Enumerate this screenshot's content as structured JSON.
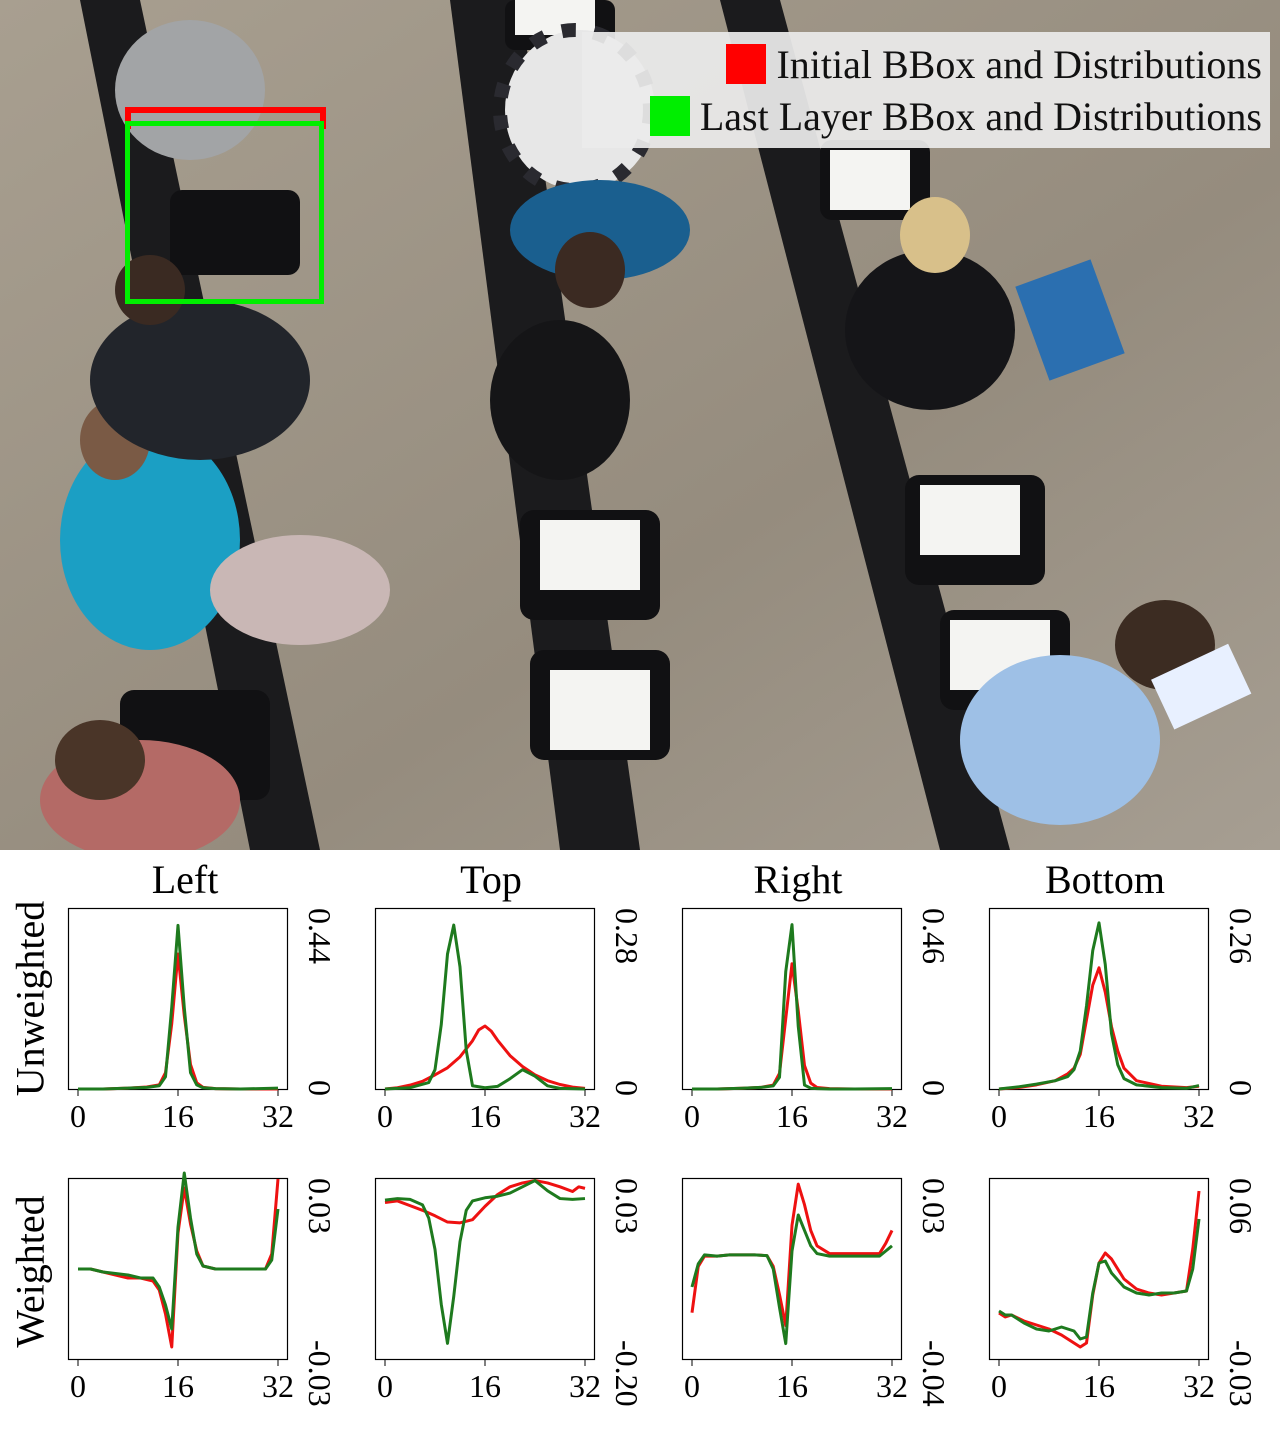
{
  "legend": {
    "items": [
      {
        "label": "Initial BBox and Distributions",
        "color": "#ff0000"
      },
      {
        "label": "Last Layer BBox and Distributions",
        "color": "#00ee00"
      }
    ]
  },
  "boxes": {
    "initial_color": "#ff0000",
    "last_color": "#00ee00"
  },
  "chart_data": [
    {
      "type": "line",
      "panel": "unweighted-left",
      "title": "Left",
      "ylabel": "Unweighted",
      "xlim": [
        0,
        32
      ],
      "xticks": [
        "0",
        "16",
        "32"
      ],
      "ylim": [
        0,
        0.44
      ],
      "yticks": [
        "0",
        "0.44"
      ],
      "series": [
        {
          "color": "#ee1111",
          "x": [
            0,
            4,
            8,
            11,
            13,
            14,
            15,
            16,
            17,
            18,
            19,
            20,
            22,
            26,
            32
          ],
          "y": [
            0,
            0,
            0.002,
            0.005,
            0.01,
            0.04,
            0.16,
            0.33,
            0.18,
            0.06,
            0.015,
            0.004,
            0.001,
            0,
            0
          ]
        },
        {
          "color": "#1e7a1e",
          "x": [
            0,
            4,
            8,
            11,
            13,
            14,
            15,
            16,
            17,
            18,
            19,
            20,
            22,
            26,
            32
          ],
          "y": [
            0,
            0,
            0.002,
            0.004,
            0.008,
            0.03,
            0.2,
            0.4,
            0.2,
            0.04,
            0.01,
            0.003,
            0.001,
            0,
            0.002
          ]
        }
      ]
    },
    {
      "type": "line",
      "panel": "unweighted-top",
      "title": "Top",
      "xlim": [
        0,
        32
      ],
      "xticks": [
        "0",
        "16",
        "32"
      ],
      "ylim": [
        0,
        0.28
      ],
      "yticks": [
        "0",
        "0.28"
      ],
      "series": [
        {
          "color": "#ee1111",
          "x": [
            0,
            2,
            4,
            6,
            8,
            10,
            12,
            14,
            15,
            16,
            17,
            18,
            20,
            22,
            24,
            26,
            28,
            30,
            32
          ],
          "y": [
            0,
            0.002,
            0.006,
            0.012,
            0.022,
            0.033,
            0.05,
            0.075,
            0.092,
            0.098,
            0.09,
            0.076,
            0.052,
            0.035,
            0.022,
            0.013,
            0.007,
            0.003,
            0.001
          ]
        },
        {
          "color": "#1e7a1e",
          "x": [
            0,
            4,
            7,
            8,
            9,
            10,
            11,
            12,
            13,
            14,
            16,
            18,
            20,
            22,
            24,
            26,
            28,
            32
          ],
          "y": [
            0,
            0.002,
            0.01,
            0.03,
            0.1,
            0.21,
            0.255,
            0.19,
            0.06,
            0.005,
            0.002,
            0.004,
            0.016,
            0.03,
            0.02,
            0.005,
            0.001,
            0
          ]
        }
      ]
    },
    {
      "type": "line",
      "panel": "unweighted-right",
      "title": "Right",
      "xlim": [
        0,
        32
      ],
      "xticks": [
        "0",
        "16",
        "32"
      ],
      "ylim": [
        0,
        0.46
      ],
      "yticks": [
        "0",
        "0.46"
      ],
      "series": [
        {
          "color": "#ee1111",
          "x": [
            0,
            4,
            8,
            11,
            13,
            14,
            15,
            16,
            17,
            18,
            19,
            20,
            22,
            26,
            32
          ],
          "y": [
            0,
            0,
            0.002,
            0.004,
            0.01,
            0.04,
            0.18,
            0.32,
            0.2,
            0.06,
            0.015,
            0.004,
            0.001,
            0,
            0
          ]
        },
        {
          "color": "#1e7a1e",
          "x": [
            0,
            4,
            8,
            11,
            13,
            14,
            15,
            16,
            17,
            18,
            19,
            20,
            22,
            26,
            32
          ],
          "y": [
            0,
            0,
            0.002,
            0.004,
            0.008,
            0.03,
            0.3,
            0.42,
            0.16,
            0.01,
            0.002,
            0.001,
            0,
            0,
            0.001
          ]
        }
      ]
    },
    {
      "type": "line",
      "panel": "unweighted-bottom",
      "title": "Bottom",
      "xlim": [
        0,
        32
      ],
      "xticks": [
        "0",
        "16",
        "32"
      ],
      "ylim": [
        0,
        0.26
      ],
      "yticks": [
        "0",
        "0.26"
      ],
      "series": [
        {
          "color": "#ee1111",
          "x": [
            0,
            3,
            6,
            9,
            11,
            12,
            13,
            14,
            15,
            16,
            17,
            18,
            19,
            20,
            22,
            26,
            30,
            32
          ],
          "y": [
            0,
            0.002,
            0.006,
            0.012,
            0.022,
            0.03,
            0.05,
            0.1,
            0.15,
            0.175,
            0.14,
            0.09,
            0.055,
            0.03,
            0.012,
            0.004,
            0.002,
            0.004
          ]
        },
        {
          "color": "#1e7a1e",
          "x": [
            0,
            3,
            6,
            9,
            11,
            12,
            13,
            14,
            15,
            16,
            17,
            18,
            19,
            20,
            22,
            26,
            30,
            32
          ],
          "y": [
            0,
            0.003,
            0.007,
            0.012,
            0.018,
            0.028,
            0.055,
            0.12,
            0.2,
            0.24,
            0.18,
            0.08,
            0.035,
            0.015,
            0.006,
            0.002,
            0.001,
            0.005
          ]
        }
      ]
    },
    {
      "type": "line",
      "panel": "weighted-left",
      "ylabel": "Weighted",
      "xlim": [
        0,
        32
      ],
      "xticks": [
        "0",
        "16",
        "32"
      ],
      "ylim": [
        -0.03,
        0.03
      ],
      "yticks": [
        "-0.03",
        "0.03"
      ],
      "series": [
        {
          "color": "#ee1111",
          "x": [
            0,
            2,
            4,
            6,
            8,
            10,
            12,
            13,
            14,
            15,
            16,
            17,
            18,
            19,
            20,
            22,
            26,
            30,
            31,
            32
          ],
          "y": [
            0,
            0,
            -0.001,
            -0.002,
            -0.003,
            -0.003,
            -0.004,
            -0.007,
            -0.015,
            -0.026,
            0.012,
            0.027,
            0.015,
            0.006,
            0.001,
            0,
            0,
            0,
            0.005,
            0.03
          ]
        },
        {
          "color": "#1e7a1e",
          "x": [
            0,
            2,
            4,
            6,
            8,
            10,
            12,
            13,
            14,
            15,
            16,
            17,
            18,
            19,
            20,
            22,
            26,
            30,
            31,
            32
          ],
          "y": [
            0,
            0,
            -0.001,
            -0.0015,
            -0.002,
            -0.003,
            -0.003,
            -0.006,
            -0.012,
            -0.02,
            0.014,
            0.032,
            0.017,
            0.005,
            0.001,
            0,
            0,
            0,
            0.003,
            0.02
          ]
        }
      ]
    },
    {
      "type": "line",
      "panel": "weighted-top",
      "xlim": [
        0,
        32
      ],
      "xticks": [
        "0",
        "16",
        "32"
      ],
      "ylim": [
        -0.2,
        0.03
      ],
      "yticks": [
        "-0.20",
        "0.03"
      ],
      "series": [
        {
          "color": "#ee1111",
          "x": [
            0,
            2,
            4,
            6,
            8,
            10,
            12,
            14,
            16,
            18,
            20,
            22,
            24,
            26,
            28,
            30,
            31,
            32
          ],
          "y": [
            0,
            0.002,
            -0.004,
            -0.01,
            -0.017,
            -0.025,
            -0.026,
            -0.022,
            -0.005,
            0.01,
            0.02,
            0.025,
            0.028,
            0.025,
            0.02,
            0.014,
            0.02,
            0.018
          ]
        },
        {
          "color": "#1e7a1e",
          "x": [
            0,
            2,
            4,
            6,
            7,
            8,
            9,
            10,
            11,
            12,
            13,
            14,
            16,
            18,
            20,
            22,
            24,
            26,
            28,
            30,
            32
          ],
          "y": [
            0.003,
            0.005,
            0.004,
            -0.003,
            -0.02,
            -0.06,
            -0.13,
            -0.18,
            -0.12,
            -0.05,
            -0.01,
            0.002,
            0.006,
            0.008,
            0.012,
            0.02,
            0.028,
            0.015,
            0.005,
            0.004,
            0.005
          ]
        }
      ]
    },
    {
      "type": "line",
      "panel": "weighted-right",
      "xlim": [
        0,
        32
      ],
      "xticks": [
        "0",
        "16",
        "32"
      ],
      "ylim": [
        -0.04,
        0.03
      ],
      "yticks": [
        "-0.04",
        "0.03"
      ],
      "series": [
        {
          "color": "#ee1111",
          "x": [
            0,
            1,
            2,
            4,
            6,
            8,
            10,
            12,
            13,
            14,
            15,
            16,
            17,
            18,
            19,
            20,
            22,
            26,
            30,
            31,
            32
          ],
          "y": [
            -0.022,
            -0.004,
            0,
            0,
            0.0005,
            0.0005,
            0.0005,
            0.0002,
            -0.004,
            -0.015,
            -0.027,
            0.012,
            0.028,
            0.02,
            0.01,
            0.004,
            0.001,
            0.001,
            0.001,
            0.005,
            0.01
          ]
        },
        {
          "color": "#1e7a1e",
          "x": [
            0,
            1,
            2,
            4,
            6,
            8,
            10,
            12,
            13,
            14,
            15,
            16,
            17,
            18,
            19,
            20,
            22,
            26,
            30,
            31,
            32
          ],
          "y": [
            -0.012,
            -0.003,
            0.0005,
            0,
            0.0005,
            0.0005,
            0.0005,
            0.0002,
            -0.005,
            -0.02,
            -0.034,
            0.002,
            0.016,
            0.01,
            0.004,
            0.001,
            0,
            0,
            0,
            0.002,
            0.004
          ]
        }
      ]
    },
    {
      "type": "line",
      "panel": "weighted-bottom",
      "xlim": [
        0,
        32
      ],
      "xticks": [
        "0",
        "16",
        "32"
      ],
      "ylim": [
        -0.03,
        0.06
      ],
      "yticks": [
        "-0.03",
        "0.06"
      ],
      "series": [
        {
          "color": "#ee1111",
          "x": [
            0,
            1,
            2,
            4,
            6,
            8,
            10,
            12,
            13,
            14,
            15,
            16,
            17,
            18,
            20,
            22,
            24,
            26,
            28,
            30,
            31,
            32
          ],
          "y": [
            -0.007,
            -0.009,
            -0.008,
            -0.011,
            -0.013,
            -0.015,
            -0.018,
            -0.022,
            -0.024,
            -0.022,
            0.002,
            0.018,
            0.023,
            0.02,
            0.01,
            0.005,
            0.003,
            0.002,
            0.003,
            0.004,
            0.025,
            0.054
          ]
        },
        {
          "color": "#1e7a1e",
          "x": [
            0,
            1,
            2,
            4,
            6,
            8,
            10,
            12,
            13,
            14,
            15,
            16,
            17,
            18,
            20,
            22,
            24,
            26,
            28,
            30,
            31,
            32
          ],
          "y": [
            -0.006,
            -0.008,
            -0.008,
            -0.012,
            -0.015,
            -0.016,
            -0.014,
            -0.016,
            -0.02,
            -0.019,
            0.003,
            0.018,
            0.019,
            0.013,
            0.006,
            0.003,
            0.002,
            0.003,
            0.003,
            0.004,
            0.015,
            0.04
          ]
        }
      ]
    }
  ],
  "columns": [
    "Left",
    "Top",
    "Right",
    "Bottom"
  ],
  "rows": [
    "Unweighted",
    "Weighted"
  ]
}
